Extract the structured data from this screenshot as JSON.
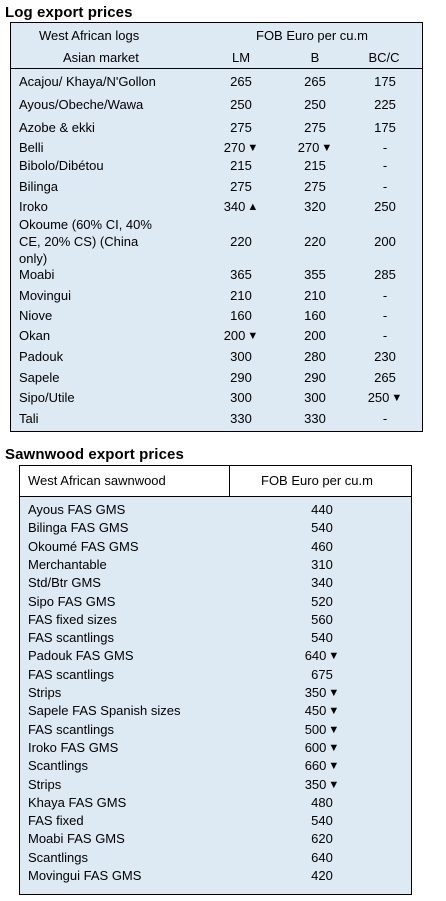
{
  "log_section": {
    "title": "Log export prices",
    "header": {
      "col1_line1": "West African logs",
      "col1_line2": "Asian market",
      "price_unit": "FOB Euro per cu.m",
      "grades": [
        "LM",
        "B",
        "BC/C"
      ]
    },
    "rows": [
      {
        "name": "Acajou/ Khaya/N'Gollon",
        "lm": "265",
        "lm_trend": "",
        "b": "265",
        "b_trend": "",
        "bc": "175",
        "bc_trend": ""
      },
      {
        "name": "Ayous/Obeche/Wawa",
        "lm": "250",
        "lm_trend": "",
        "b": "250",
        "b_trend": "",
        "bc": "225",
        "bc_trend": ""
      },
      {
        "name": "Azobe & ekki",
        "lm": "275",
        "lm_trend": "",
        "b": "275",
        "b_trend": "",
        "bc": "175",
        "bc_trend": ""
      },
      {
        "name": "Belli",
        "lm": "270",
        "lm_trend": "down",
        "b": "270",
        "b_trend": "down",
        "bc": "-",
        "bc_trend": ""
      },
      {
        "name": "Bibolo/Dibétou",
        "lm": "215",
        "lm_trend": "",
        "b": "215",
        "b_trend": "",
        "bc": "-",
        "bc_trend": ""
      },
      {
        "name": "Bilinga",
        "lm": "275",
        "lm_trend": "",
        "b": "275",
        "b_trend": "",
        "bc": "-",
        "bc_trend": ""
      },
      {
        "name": "Iroko",
        "lm": "340",
        "lm_trend": "up",
        "b": "320",
        "b_trend": "",
        "bc": "250",
        "bc_trend": ""
      },
      {
        "name_lines": [
          "Okoume (60% CI, 40%",
          "CE, 20% CS) (China",
          "only)"
        ],
        "lm": "220",
        "lm_trend": "",
        "b": "220",
        "b_trend": "",
        "bc": "200",
        "bc_trend": ""
      },
      {
        "name": "Moabi",
        "lm": "365",
        "lm_trend": "",
        "b": "355",
        "b_trend": "",
        "bc": "285",
        "bc_trend": ""
      },
      {
        "name": "Movingui",
        "lm": "210",
        "lm_trend": "",
        "b": "210",
        "b_trend": "",
        "bc": "-",
        "bc_trend": ""
      },
      {
        "name": "Niove",
        "lm": "160",
        "lm_trend": "",
        "b": "160",
        "b_trend": "",
        "bc": "-",
        "bc_trend": ""
      },
      {
        "name": "Okan",
        "lm": "200",
        "lm_trend": "down",
        "b": "200",
        "b_trend": "",
        "bc": "-",
        "bc_trend": ""
      },
      {
        "name": "Padouk",
        "lm": "300",
        "lm_trend": "",
        "b": "280",
        "b_trend": "",
        "bc": "230",
        "bc_trend": ""
      },
      {
        "name": "Sapele",
        "lm": "290",
        "lm_trend": "",
        "b": "290",
        "b_trend": "",
        "bc": "265",
        "bc_trend": ""
      },
      {
        "name": "Sipo/Utile",
        "lm": "300",
        "lm_trend": "",
        "b": "300",
        "b_trend": "",
        "bc": "250",
        "bc_trend": "down"
      },
      {
        "name": "Tali",
        "lm": "330",
        "lm_trend": "",
        "b": "330",
        "b_trend": "",
        "bc": "-",
        "bc_trend": ""
      }
    ]
  },
  "sawn_section": {
    "title": "Sawnwood export prices",
    "header": {
      "col1": "West African sawnwood",
      "col2": "FOB Euro per cu.m"
    },
    "rows": [
      {
        "name": "Ayous FAS GMS",
        "price": "440",
        "trend": ""
      },
      {
        "name": "Bilinga FAS GMS",
        "price": "540",
        "trend": ""
      },
      {
        "name": "Okoumé FAS GMS",
        "price": "460",
        "trend": ""
      },
      {
        "name": "Merchantable",
        "price": "310",
        "trend": ""
      },
      {
        "name": "Std/Btr GMS",
        "price": "340",
        "trend": ""
      },
      {
        "name": "Sipo FAS GMS",
        "price": "520",
        "trend": ""
      },
      {
        "name": "FAS fixed sizes",
        "price": "560",
        "trend": ""
      },
      {
        "name": "FAS scantlings",
        "price": "540",
        "trend": ""
      },
      {
        "name": "Padouk FAS GMS",
        "price": "640",
        "trend": "down"
      },
      {
        "name": "FAS scantlings",
        "price": "675",
        "trend": ""
      },
      {
        "name": "Strips",
        "price": "350",
        "trend": "down"
      },
      {
        "name": "Sapele FAS Spanish sizes",
        "price": "450",
        "trend": "down"
      },
      {
        "name": "FAS scantlings",
        "price": "500",
        "trend": "down"
      },
      {
        "name": "Iroko FAS GMS",
        "price": "600",
        "trend": "down"
      },
      {
        "name": "Scantlings",
        "price": "660",
        "trend": "down"
      },
      {
        "name": "Strips",
        "price": "350",
        "trend": "down"
      },
      {
        "name": "Khaya FAS GMS",
        "price": "480",
        "trend": ""
      },
      {
        "name": "FAS fixed",
        "price": "540",
        "trend": ""
      },
      {
        "name": "Moabi FAS GMS",
        "price": "620",
        "trend": ""
      },
      {
        "name": "Scantlings",
        "price": "640",
        "trend": ""
      },
      {
        "name": "Movingui FAS GMS",
        "price": "420",
        "trend": ""
      }
    ]
  }
}
